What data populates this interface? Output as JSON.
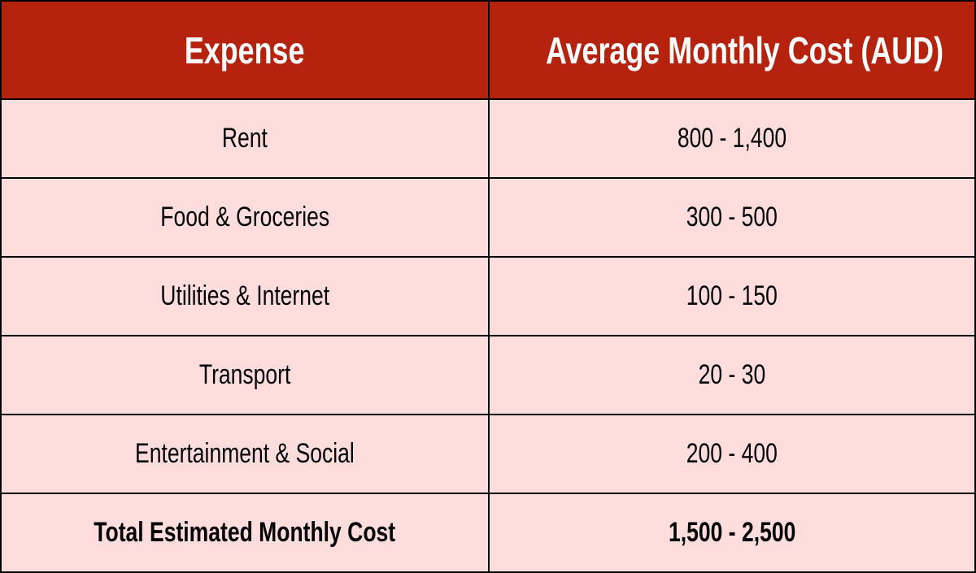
{
  "colors": {
    "header_bg": "#b5230f",
    "row_bg": "#ffdddd",
    "header_text": "#ffffff",
    "border": "#000000"
  },
  "table": {
    "headers": [
      "Expense",
      "Average Monthly Cost (AUD)"
    ],
    "rows": [
      [
        "Rent",
        "800 - 1,400"
      ],
      [
        "Food & Groceries",
        "300 - 500"
      ],
      [
        "Utilities & Internet",
        "100 - 150"
      ],
      [
        "Transport",
        "20 - 30"
      ],
      [
        "Entertainment & Social",
        "200 - 400"
      ]
    ],
    "total": [
      "Total Estimated Monthly Cost",
      "1,500 - 2,500"
    ]
  }
}
